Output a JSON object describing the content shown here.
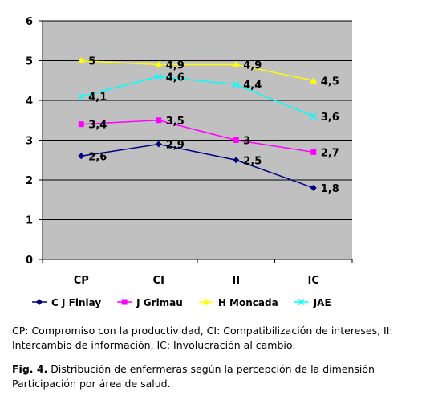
{
  "chart_data": {
    "type": "line",
    "categories": [
      "CP",
      "CI",
      "II",
      "IC"
    ],
    "ylim": [
      0,
      6
    ],
    "yticks": [
      0,
      1,
      2,
      3,
      4,
      5,
      6
    ],
    "grid": true,
    "legend_position": "bottom",
    "series": [
      {
        "name": "C J Finlay",
        "values": [
          2.6,
          2.9,
          2.5,
          1.8
        ],
        "labels": [
          "2,6",
          "2,9",
          "2,5",
          "1,8"
        ],
        "color": "#000080",
        "marker": "diamond"
      },
      {
        "name": "J Grimau",
        "values": [
          3.4,
          3.5,
          3.0,
          2.7
        ],
        "labels": [
          "3,4",
          "3,5",
          "3",
          "2,7"
        ],
        "color": "#FF00FF",
        "marker": "square"
      },
      {
        "name": "H Moncada",
        "values": [
          5.0,
          4.9,
          4.9,
          4.5
        ],
        "labels": [
          "5",
          "4,9",
          "4,9",
          "4,5"
        ],
        "color": "#FFFF00",
        "marker": "triangle"
      },
      {
        "name": "JAE",
        "values": [
          4.1,
          4.6,
          4.4,
          3.6
        ],
        "labels": [
          "4,1",
          "4,6",
          "4,4",
          "3,6"
        ],
        "color": "#00FFFF",
        "marker": "x"
      }
    ]
  },
  "colors": {
    "plot_background": "#C0C0C0",
    "gridline": "#000000"
  },
  "legend_note": "CP: Compromiso con la productividad, CI: Compatibilización de intereses, II: Intercambio de información, IC: Involucración al cambio.",
  "caption": {
    "label": "Fig. 4.",
    "text": " Distribución de enfermeras según la percepción de la dimensión Participación por área de salud."
  }
}
